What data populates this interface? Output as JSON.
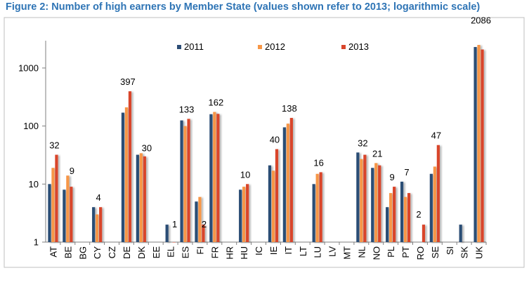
{
  "title": "Figure 2: Number of high earners by Member State (values shown refer to 2013; logarithmic scale)",
  "chart_data": {
    "type": "bar",
    "scale": "log",
    "ylim": [
      1,
      2500
    ],
    "y_ticks": [
      "1",
      "10",
      "100",
      "1000"
    ],
    "grid": false,
    "legend_position": "top",
    "categories": [
      "AT",
      "BE",
      "BG",
      "CY",
      "CZ",
      "DE",
      "DK",
      "EE",
      "EL",
      "ES",
      "FI",
      "FR",
      "HR",
      "HU",
      "IC",
      "IE",
      "IT",
      "LT",
      "LU",
      "LV",
      "MT",
      "NL",
      "NO",
      "PL",
      "PT",
      "RO",
      "SE",
      "SI",
      "SK",
      "UK"
    ],
    "series": [
      {
        "name": "2011",
        "color": "#2c4d75",
        "values": [
          10,
          8,
          null,
          4,
          null,
          170,
          32,
          null,
          2,
          125,
          5,
          160,
          null,
          8,
          null,
          21,
          95,
          null,
          10,
          null,
          null,
          35,
          19,
          4,
          11,
          null,
          15,
          null,
          2,
          2300
        ]
      },
      {
        "name": "2012",
        "color": "#f79646",
        "values": [
          19,
          14,
          null,
          3,
          null,
          210,
          34,
          null,
          null,
          100,
          6,
          175,
          null,
          9,
          null,
          17,
          110,
          null,
          15,
          null,
          null,
          27,
          23,
          7,
          6,
          null,
          20,
          null,
          null,
          2500
        ]
      },
      {
        "name": "2013",
        "color": "#d9452b",
        "values": [
          32,
          9,
          null,
          4,
          null,
          397,
          30,
          null,
          1,
          133,
          2,
          162,
          null,
          10,
          null,
          40,
          138,
          null,
          16,
          null,
          null,
          32,
          21,
          9,
          7,
          2,
          47,
          null,
          null,
          2086
        ]
      }
    ],
    "data_labels": [
      "32",
      "9",
      "",
      "4",
      "",
      "397",
      "30",
      "",
      "1",
      "133",
      "2",
      "162",
      "",
      "10",
      "",
      "40",
      "138",
      "",
      "16",
      "",
      "",
      "32",
      "21",
      "9",
      "7",
      "2",
      "47",
      "",
      "",
      "2086"
    ]
  }
}
